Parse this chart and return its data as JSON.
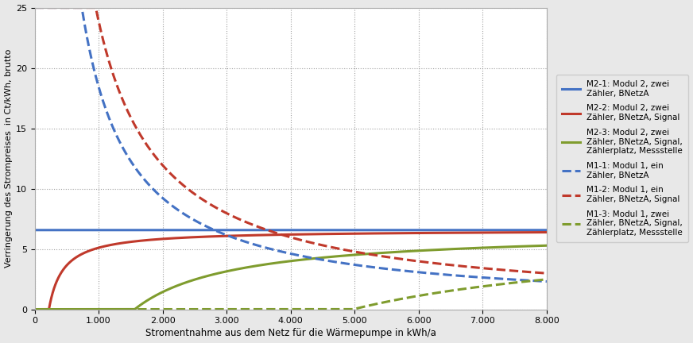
{
  "xlabel": "Stromentnahme aus dem Netz für die Wärmepumpe in kWh/a",
  "ylabel": "Verringerung des Strompreises  in Ct/kWh, brutto",
  "xlim": [
    0,
    8000
  ],
  "ylim": [
    0,
    25
  ],
  "xticks": [
    0,
    1000,
    2000,
    3000,
    4000,
    5000,
    6000,
    7000,
    8000
  ],
  "yticks": [
    0,
    5,
    10,
    15,
    20,
    25
  ],
  "background_color": "#e8e8e8",
  "plot_background": "#ffffff",
  "grid_color": "#888888",
  "curves": [
    {
      "key": "M2_1",
      "label": "M2-1: Modul 2, zwei\nZähler, BNetzA",
      "color": "#4472c4",
      "ls": "solid",
      "lw": 2.2,
      "type": "flat",
      "base": 6.565,
      "cost": 0.0
    },
    {
      "key": "M2_2",
      "label": "M2-2: Modul 2, zwei\nZähler, BNetzA, Signal",
      "color": "#c0392b",
      "ls": "solid",
      "lw": 2.2,
      "type": "rise",
      "base": 6.565,
      "cost": 14.65
    },
    {
      "key": "M2_3",
      "label": "M2-3: Modul 2, zwei\nZähler, BNetzA, Signal,\nZählerplatz, Messstelle",
      "color": "#7f9c2e",
      "ls": "solid",
      "lw": 2.2,
      "type": "rise",
      "base": 6.565,
      "cost": 102.6
    },
    {
      "key": "M1_1",
      "label": "M1-1: Modul 1, ein\nZähler, BNetzA",
      "color": "#4472c4",
      "ls": "dashed",
      "lw": 2.2,
      "type": "decay",
      "base": 6.565,
      "cost": 184.35
    },
    {
      "key": "M1_2",
      "label": "M1-2: Modul 1, ein\nZähler, BNetzA, Signal",
      "color": "#c0392b",
      "ls": "dashed",
      "lw": 2.2,
      "type": "decay",
      "base": 6.565,
      "cost": 238.7
    },
    {
      "key": "M1_3",
      "label": "M1-3: Modul 1, zwei\nZähler, BNetzA, Signal,\nZählerplatz, Messstelle",
      "color": "#7f9c2e",
      "ls": "dashed",
      "lw": 2.2,
      "type": "decay_neg",
      "base": 6.565,
      "cost": 326.7
    }
  ]
}
